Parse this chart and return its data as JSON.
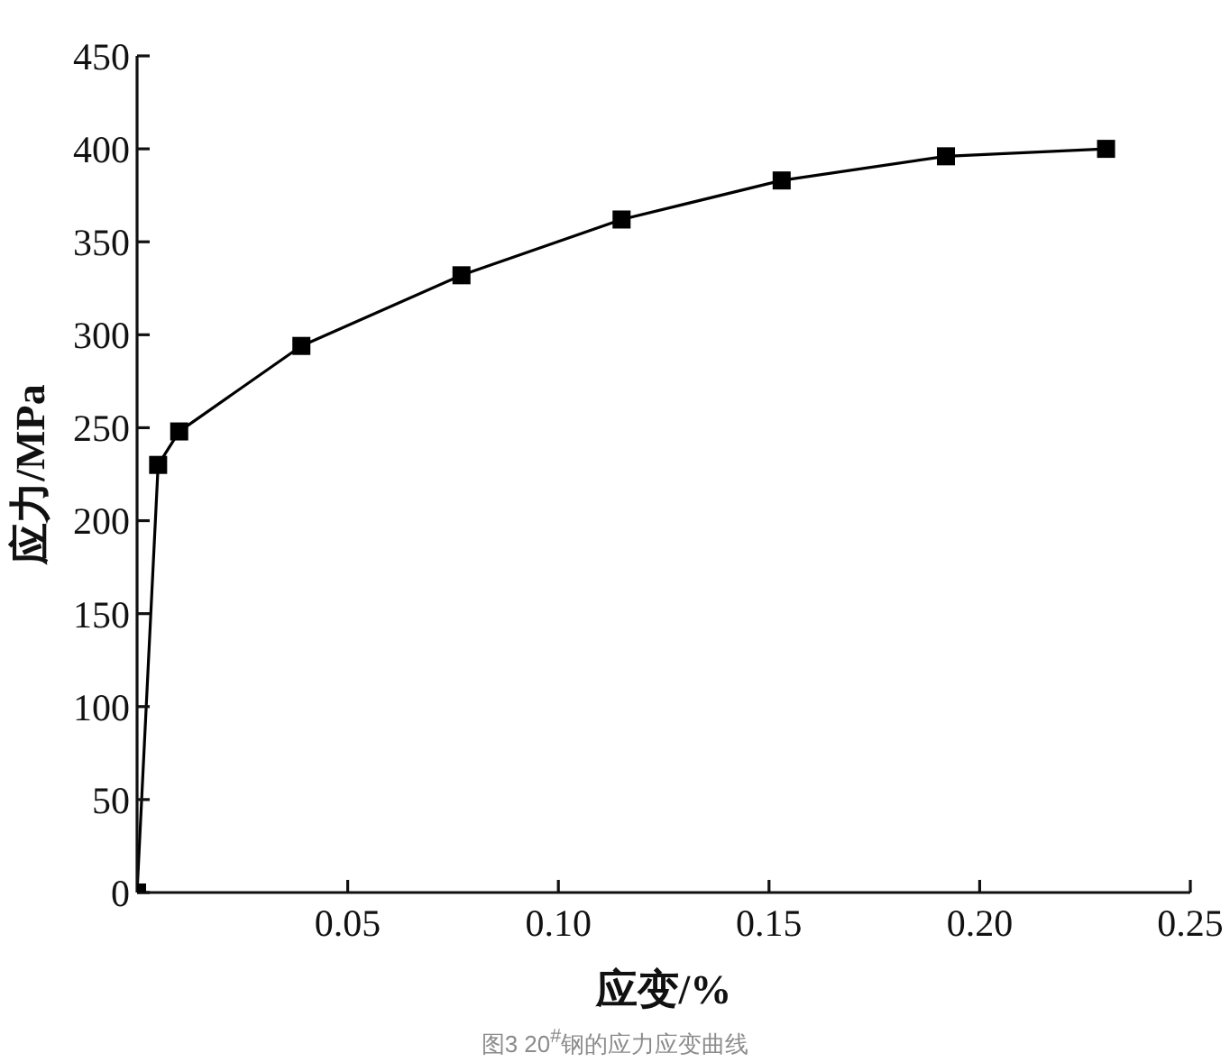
{
  "chart_data": {
    "type": "line",
    "xlabel": "应变/%",
    "ylabel": "应力/MPa",
    "x": [
      0,
      0.005,
      0.01,
      0.039,
      0.077,
      0.115,
      0.153,
      0.192,
      0.23
    ],
    "values": [
      0,
      230,
      248,
      294,
      332,
      362,
      383,
      396,
      400
    ],
    "color": "#000000",
    "marker": "square",
    "line_style": "solid",
    "xlim": [
      0,
      0.25
    ],
    "xticks": [
      0.05,
      {
        "value": 0.1,
        "label": "0.10"
      },
      0.15,
      {
        "value": 0.2,
        "label": "0.20"
      },
      0.25
    ],
    "ylim": [
      0,
      450
    ],
    "yticks": [
      0,
      50,
      100,
      150,
      200,
      250,
      300,
      350,
      400,
      450
    ],
    "annotations": [
      "图3 20$^{#}$钢的应力应变曲线"
    ]
  }
}
